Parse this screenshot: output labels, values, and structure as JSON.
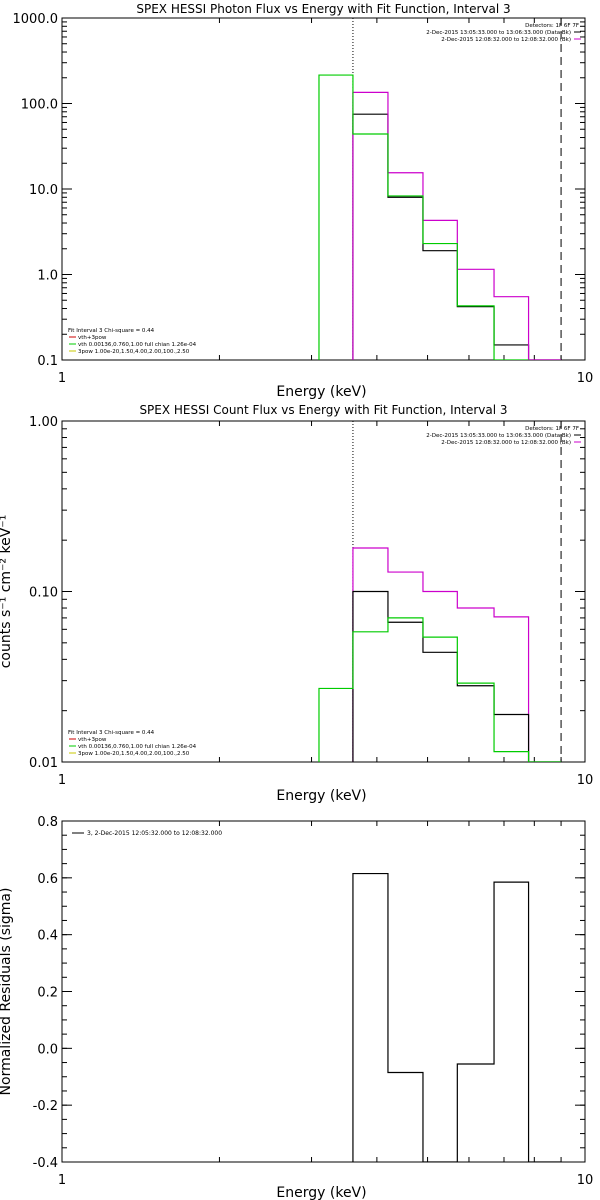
{
  "colors": {
    "black": "#000000",
    "magenta": "#cc00cc",
    "green": "#00cc00",
    "red": "#cc0000",
    "yellow": "#c8c800"
  },
  "chart_data": [
    {
      "type": "line",
      "title": "SPEX HESSI Photon Flux vs Energy with Fit Function, Interval 3",
      "xlabel": "Energy (keV)",
      "ylabel": "",
      "xscale": "log",
      "yscale": "log",
      "xlim": [
        1,
        10
      ],
      "ylim": [
        0.1,
        1000
      ],
      "xticks": [
        1,
        10
      ],
      "xtick_labels": [
        "1",
        "10"
      ],
      "yticks": [
        0.1,
        1,
        10,
        100,
        1000
      ],
      "ytick_labels": [
        "0.1",
        "1.0",
        "10.0",
        "100.0",
        "1000.0"
      ],
      "dotted_line_x": 3.6,
      "dashed_line_x": 9.0,
      "header": [
        {
          "text": "Detectors: 1F 6F 7F",
          "color": "#000000"
        },
        {
          "text": "2-Dec-2015 13:05:33.000 to 13:06:33.000 (Data-Bk)",
          "color": "#000000"
        },
        {
          "text": "2-Dec-2015 12:08:32.000 to 12:08:32.000 (Bk)",
          "color": "#cc00cc"
        }
      ],
      "fit_legend": [
        {
          "text": "Fit Interval 3   Chi-square = 0.44",
          "color": "#000000"
        },
        {
          "text": "vth+3pow",
          "color": "#cc0000"
        },
        {
          "text": "vth 0.00136,0.760,1.00   full chian 1.26e-04",
          "color": "#00cc00"
        },
        {
          "text": "3pow 1.00e-20,1.50,4.00,2.00,100.,2.50",
          "color": "#c8c800"
        }
      ],
      "series": [
        {
          "color": "#000000",
          "bins": [
            [
              3.6,
              4.2
            ],
            [
              4.2,
              4.9
            ],
            [
              4.9,
              5.7
            ],
            [
              5.7,
              6.7
            ],
            [
              6.7,
              7.8
            ],
            [
              7.8,
              9.0
            ]
          ],
          "values": [
            75,
            8,
            1.9,
            0.42,
            0.15,
            0.1
          ]
        },
        {
          "color": "#cc00cc",
          "bins": [
            [
              3.6,
              4.2
            ],
            [
              4.2,
              4.9
            ],
            [
              4.9,
              5.7
            ],
            [
              5.7,
              6.7
            ],
            [
              6.7,
              7.8
            ],
            [
              7.8,
              9.0
            ]
          ],
          "values": [
            135,
            15.5,
            4.3,
            1.15,
            0.55,
            0.1
          ]
        },
        {
          "color": "#00cc00",
          "bins": [
            [
              3.1,
              3.6
            ],
            [
              3.6,
              4.2
            ],
            [
              4.2,
              4.9
            ],
            [
              4.9,
              5.7
            ],
            [
              5.7,
              6.7
            ],
            [
              6.7,
              7.8
            ]
          ],
          "values": [
            215,
            44,
            8.3,
            2.3,
            0.43,
            0.1
          ]
        }
      ]
    },
    {
      "type": "line",
      "title": "SPEX HESSI Count Flux vs Energy with Fit Function, Interval 3",
      "xlabel": "Energy (keV)",
      "ylabel": "counts s⁻¹ cm⁻² keV⁻¹",
      "xscale": "log",
      "yscale": "log",
      "xlim": [
        1,
        10
      ],
      "ylim": [
        0.01,
        1
      ],
      "xticks": [
        1,
        10
      ],
      "xtick_labels": [
        "1",
        "10"
      ],
      "yticks": [
        0.01,
        0.1,
        1
      ],
      "ytick_labels": [
        "0.01",
        "0.10",
        "1.00"
      ],
      "dotted_line_x": 3.6,
      "dashed_line_x": 9.0,
      "header": [
        {
          "text": "Detectors: 1F 6F 7F",
          "color": "#000000"
        },
        {
          "text": "2-Dec-2015 13:05:33.000 to 13:06:33.000 (Data-Bk)",
          "color": "#000000"
        },
        {
          "text": "2-Dec-2015 12:08:32.000 to 12:08:32.000 (Bk)",
          "color": "#cc00cc"
        }
      ],
      "fit_legend": [
        {
          "text": "Fit Interval 3   Chi-square = 0.44",
          "color": "#000000"
        },
        {
          "text": "vth+3pow",
          "color": "#cc0000"
        },
        {
          "text": "vth 0.00136,0.760,1.00   full chian 1.26e-04",
          "color": "#00cc00"
        },
        {
          "text": "3pow 1.00e-20,1.50,4.00,2.00,100.,2.50",
          "color": "#c8c800"
        }
      ],
      "series": [
        {
          "color": "#cc00cc",
          "bins": [
            [
              3.6,
              4.2
            ],
            [
              4.2,
              4.9
            ],
            [
              4.9,
              5.7
            ],
            [
              5.7,
              6.7
            ],
            [
              6.7,
              7.8
            ],
            [
              7.8,
              9.0
            ]
          ],
          "values": [
            0.18,
            0.13,
            0.1,
            0.08,
            0.071,
            0.01
          ]
        },
        {
          "color": "#000000",
          "bins": [
            [
              3.6,
              4.2
            ],
            [
              4.2,
              4.9
            ],
            [
              4.9,
              5.7
            ],
            [
              5.7,
              6.7
            ],
            [
              6.7,
              7.8
            ],
            [
              7.8,
              9.0
            ]
          ],
          "values": [
            0.1,
            0.066,
            0.044,
            0.028,
            0.019,
            0.01
          ]
        },
        {
          "color": "#00cc00",
          "bins": [
            [
              3.1,
              3.6
            ],
            [
              3.6,
              4.2
            ],
            [
              4.2,
              4.9
            ],
            [
              4.9,
              5.7
            ],
            [
              5.7,
              6.7
            ],
            [
              6.7,
              7.8
            ],
            [
              7.8,
              9.0
            ]
          ],
          "values": [
            0.027,
            0.058,
            0.07,
            0.054,
            0.029,
            0.0115,
            0.01
          ]
        }
      ]
    },
    {
      "type": "line",
      "title": "",
      "xlabel": "Energy (keV)",
      "ylabel": "Normalized Residuals (sigma)",
      "xscale": "log",
      "yscale": "linear",
      "xlim": [
        1,
        10
      ],
      "ylim": [
        -0.4,
        0.8
      ],
      "xticks": [
        1,
        10
      ],
      "xtick_labels": [
        "1",
        "10"
      ],
      "yticks": [
        -0.4,
        -0.2,
        0,
        0.2,
        0.4,
        0.6,
        0.8
      ],
      "ytick_labels": [
        "-0.4",
        "-0.2",
        "0.0",
        "0.2",
        "0.4",
        "0.6",
        "0.8"
      ],
      "header": [],
      "fit_legend": [
        {
          "text": "3,  2-Dec-2015 12:05:32.000 to 12:08:32.000",
          "color": "#000000",
          "marker": true
        }
      ],
      "series": [
        {
          "color": "#000000",
          "bins": [
            [
              3.6,
              4.2
            ],
            [
              4.2,
              4.9
            ],
            [
              4.9,
              5.7
            ],
            [
              5.7,
              6.7
            ],
            [
              6.7,
              7.8
            ],
            [
              7.8,
              9.0
            ]
          ],
          "values": [
            0.615,
            -0.085,
            -0.41,
            -0.055,
            0.585,
            -0.4
          ]
        }
      ]
    }
  ]
}
